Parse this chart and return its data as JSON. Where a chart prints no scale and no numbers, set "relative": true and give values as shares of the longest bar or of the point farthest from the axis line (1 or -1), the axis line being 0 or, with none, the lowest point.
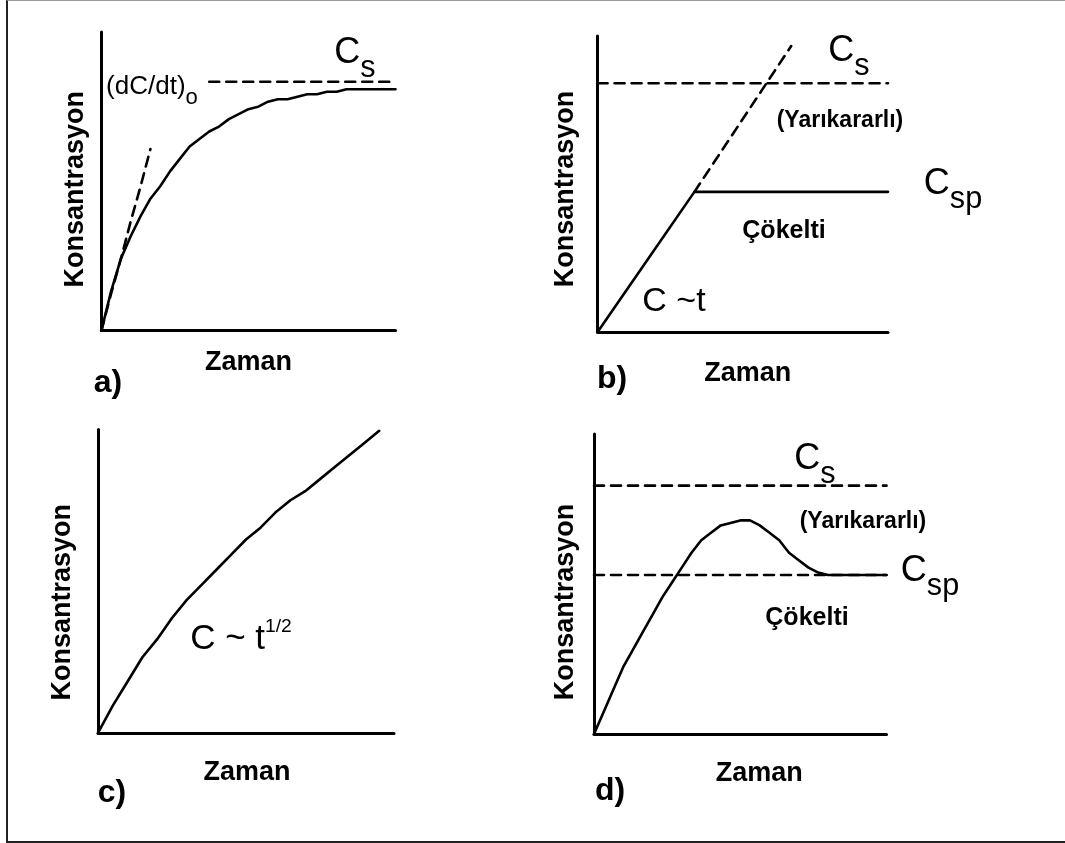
{
  "chart_data": [
    {
      "type": "line",
      "title": "a)",
      "xlabel": "Zaman",
      "ylabel": "Konsantrasyon",
      "relative": true,
      "tick_labels": false,
      "categories": [
        null,
        null,
        null,
        null,
        null,
        null,
        null,
        null,
        null,
        null,
        null,
        null,
        null,
        null,
        null,
        null,
        null,
        null,
        null,
        null,
        null,
        null,
        null,
        null,
        null,
        null,
        null,
        null,
        null,
        null,
        null
      ],
      "series": [
        {
          "color": "#000000",
          "values": [
            0,
            0.16,
            0.29,
            0.38,
            0.46,
            0.53,
            0.58,
            0.64,
            0.69,
            0.74,
            0.77,
            0.8,
            0.82,
            0.85,
            0.87,
            0.89,
            0.9,
            0.92,
            0.93,
            0.93,
            0.94,
            0.95,
            0.95,
            0.96,
            0.96,
            0.97,
            0.97,
            0.97,
            0.97,
            0.97,
            0.97
          ]
        },
        {
          "color": "#000000",
          "line_style": "dashed",
          "values": [
            0,
            0.15,
            0.29,
            0.44,
            0.58,
            0.73,
            null,
            null,
            null,
            null,
            null,
            null,
            null,
            null,
            null,
            null,
            null,
            null,
            null,
            null,
            null,
            null,
            null,
            null,
            null,
            null,
            null,
            null,
            null,
            null,
            null
          ]
        },
        {
          "color": "#000000",
          "line_style": "dashed",
          "values": [
            null,
            null,
            null,
            null,
            null,
            null,
            null,
            null,
            null,
            null,
            null,
            1,
            1,
            1,
            1,
            1,
            1,
            1,
            1,
            1,
            1,
            1,
            1,
            1,
            1,
            1,
            1,
            1,
            1,
            1,
            1
          ]
        }
      ],
      "annotations": [
        "(dC/dt)$_{o}$",
        "C$_{s}$"
      ]
    },
    {
      "type": "line",
      "title": "b)",
      "xlabel": "Zaman",
      "ylabel": "Konsantrasyon",
      "relative": true,
      "tick_labels": false,
      "categories": [
        null,
        null,
        null,
        null
      ],
      "series": [
        {
          "color": "#000000",
          "values": [
            0,
            0.49,
            0.49,
            0.49
          ]
        },
        {
          "color": "#000000",
          "line_style": "dashed",
          "values": [
            null,
            0.49,
            1,
            null
          ]
        },
        {
          "color": "#000000",
          "line_style": "dashed",
          "values": [
            0.87,
            0.87,
            0.87,
            0.87
          ]
        }
      ],
      "annotations": [
        "C$_{s}$",
        "(Yarıkararlı)",
        "C$_{sp}$",
        "Çökelti",
        "C ~t"
      ]
    },
    {
      "type": "line",
      "title": "c)",
      "xlabel": "Zaman",
      "ylabel": "Konsantrasyon",
      "relative": true,
      "tick_labels": false,
      "categories": [
        null,
        null,
        null,
        null,
        null,
        null,
        null,
        null,
        null,
        null,
        null,
        null,
        null,
        null,
        null,
        null,
        null,
        null,
        null,
        null,
        null
      ],
      "series": [
        {
          "color": "#000000",
          "values": [
            0,
            0.09,
            0.17,
            0.25,
            0.31,
            0.38,
            0.44,
            0.49,
            0.54,
            0.59,
            0.64,
            0.68,
            0.73,
            0.77,
            0.8,
            0.84,
            0.88,
            0.92,
            0.96,
            1,
            null
          ]
        }
      ],
      "annotations": [
        "C ~ t$^{1/2}$"
      ]
    },
    {
      "type": "line",
      "title": "d)",
      "xlabel": "Zaman",
      "ylabel": "Konsantrasyon",
      "relative": true,
      "tick_labels": false,
      "categories": [
        null,
        null,
        null,
        null,
        null,
        null,
        null,
        null,
        null,
        null,
        null,
        null,
        null,
        null,
        null,
        null,
        null,
        null,
        null,
        null,
        null,
        null,
        null,
        null,
        null,
        null,
        null,
        null,
        null,
        null,
        null
      ],
      "series": [
        {
          "color": "#000000",
          "values": [
            0,
            0.09,
            0.18,
            0.27,
            0.34,
            0.41,
            0.48,
            0.55,
            0.61,
            0.67,
            0.73,
            0.78,
            0.81,
            0.84,
            0.85,
            0.86,
            0.86,
            0.84,
            0.81,
            0.78,
            0.73,
            0.7,
            0.67,
            0.65,
            0.64,
            0.64,
            0.64,
            0.64,
            0.64,
            0.64,
            0.64
          ]
        },
        {
          "color": "#000000",
          "line_style": "dashed",
          "values": [
            1,
            1,
            1,
            1,
            1,
            1,
            1,
            1,
            1,
            1,
            1,
            1,
            1,
            1,
            1,
            1,
            1,
            1,
            1,
            1,
            1,
            1,
            1,
            1,
            1,
            1,
            1,
            1,
            1,
            1,
            1
          ]
        },
        {
          "color": "#000000",
          "line_style": "dashed",
          "values": [
            0.64,
            0.64,
            0.64,
            0.64,
            0.64,
            0.64,
            0.64,
            0.64,
            0.64,
            0.64,
            0.64,
            0.64,
            0.64,
            0.64,
            0.64,
            0.64,
            0.64,
            0.64,
            0.64,
            0.64,
            0.64,
            0.64,
            0.64,
            0.64,
            0.64,
            0.64,
            0.64,
            0.64,
            0.64,
            0.64,
            0.64
          ]
        }
      ],
      "annotations": [
        "C$_{s}$",
        "(Yarıkararlı)",
        "C$_{sp}$",
        "Çökelti"
      ]
    }
  ]
}
